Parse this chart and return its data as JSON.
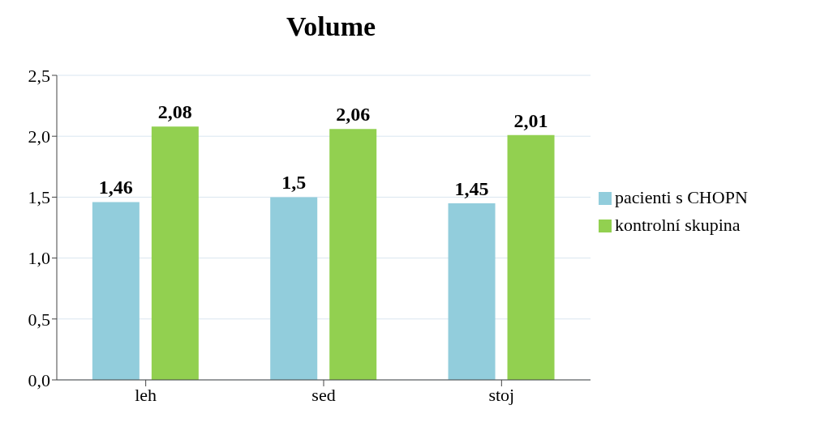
{
  "chart_data": {
    "type": "bar",
    "title": "Volume",
    "categories": [
      "leh",
      "sed",
      "stoj"
    ],
    "series": [
      {
        "name": "pacienti s CHOPN",
        "color": "#92cddc",
        "values": [
          1.46,
          1.5,
          1.45
        ],
        "value_labels": [
          "1,46",
          "1,5",
          "1,45"
        ]
      },
      {
        "name": "kontrolní skupina",
        "color": "#92d050",
        "values": [
          2.08,
          2.06,
          2.01
        ],
        "value_labels": [
          "2,08",
          "2,06",
          "2,01"
        ]
      }
    ],
    "ylim": [
      0,
      2.5
    ],
    "yticks": [
      {
        "value": 0,
        "label": "0,0"
      },
      {
        "value": 0.5,
        "label": "0,5"
      },
      {
        "value": 1,
        "label": "1,0"
      },
      {
        "value": 1.5,
        "label": "1,5"
      },
      {
        "value": 2,
        "label": "2,0"
      },
      {
        "value": 2.5,
        "label": "2,5"
      }
    ],
    "grid": "y",
    "legend": "right"
  }
}
